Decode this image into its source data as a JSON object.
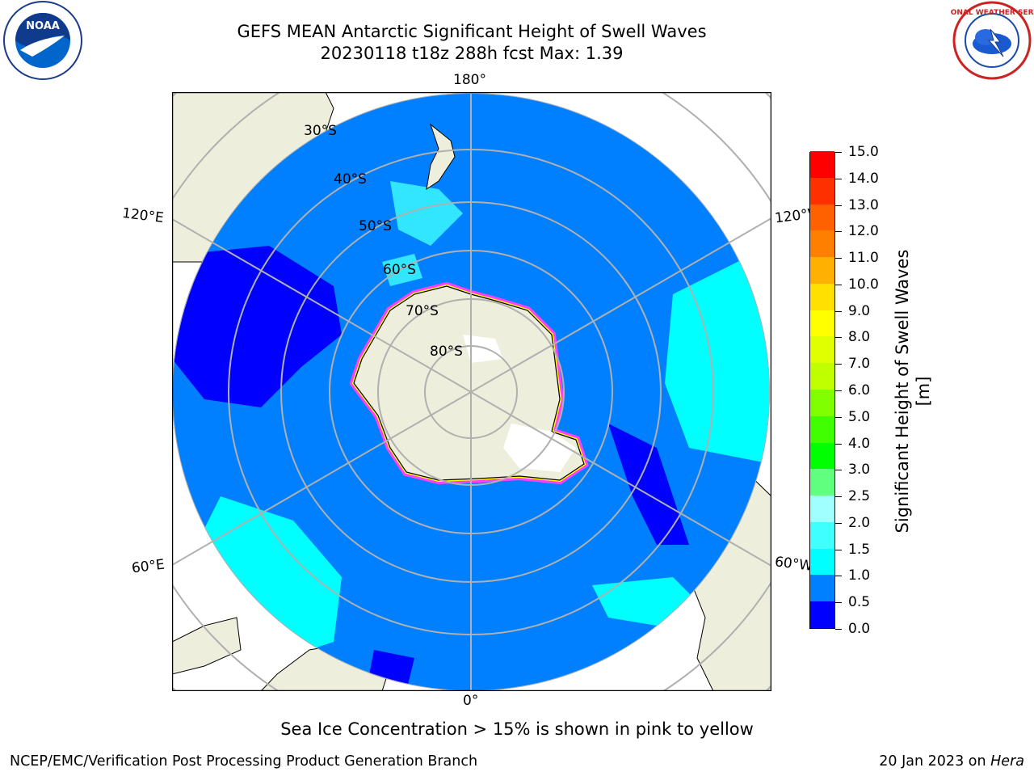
{
  "header": {
    "title_line1": "GEFS MEAN Antarctic Significant Height of Swell Waves",
    "title_line2": "20230118 t18z 288h fcst   Max: 1.39"
  },
  "map": {
    "projection": "south-polar-stereographic",
    "longitude_labels": {
      "top": "180°",
      "bottom": "0°",
      "upper_left": "120°E",
      "lower_left": "60°E",
      "upper_right": "120°W",
      "lower_right": "60°W"
    },
    "latitude_labels": [
      "30°S",
      "40°S",
      "50°S",
      "60°S",
      "70°S",
      "80°S"
    ],
    "colors": {
      "land": "#eeeedc",
      "ocean_main": "#0080ff",
      "ocean_low": "#0000ff",
      "ocean_mid": "#00ffff",
      "ice_edge_pink": "#ff40ff",
      "ice_edge_yellow": "#ffff00",
      "graticule": "#b0b0b0"
    }
  },
  "colorbar": {
    "label": "Significant Height of Swell Waves [m]",
    "ticks": [
      "0.0",
      "0.5",
      "1.0",
      "1.5",
      "2.0",
      "2.5",
      "3.0",
      "4.0",
      "5.0",
      "6.0",
      "7.0",
      "8.0",
      "9.0",
      "10.0",
      "11.0",
      "12.0",
      "13.0",
      "14.0",
      "15.0"
    ],
    "colors": [
      "#0000ff",
      "#0080ff",
      "#00ffff",
      "#40ffff",
      "#a0ffff",
      "#60ff80",
      "#00ff00",
      "#40ff00",
      "#80ff00",
      "#c0ff00",
      "#e0ff00",
      "#ffff00",
      "#ffe000",
      "#ffb000",
      "#ff8000",
      "#ff6000",
      "#ff3000",
      "#ff0000"
    ]
  },
  "caption": "Sea Ice Concentration > 15% is shown in pink to yellow",
  "footer": {
    "left": "NCEP/EMC/Verification Post Processing Product Generation Branch",
    "right_prefix": "20 Jan 2023 on ",
    "right_system": "Hera"
  },
  "logos": {
    "left": "NOAA",
    "right": "NATIONAL WEATHER SERVICE"
  }
}
